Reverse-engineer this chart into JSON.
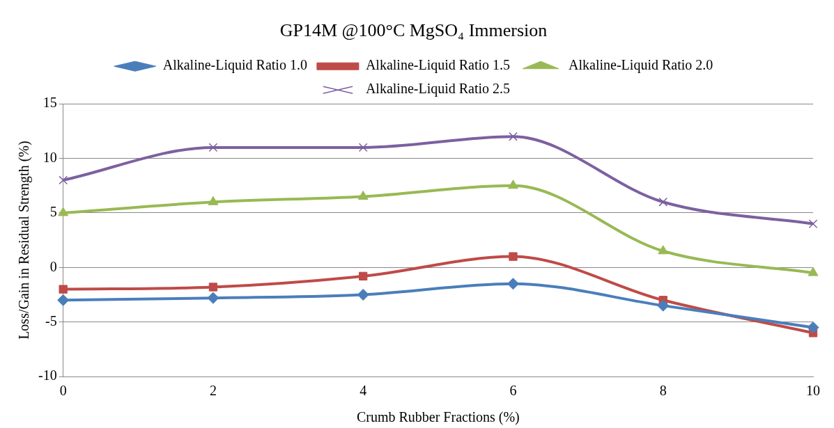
{
  "chart_data": {
    "type": "line",
    "title": "GP14M @100°C MgSO₄ Immersion",
    "xlabel": "Crumb Rubber Fractions (%)",
    "ylabel": "Loss/Gain in Residual Strength (%)",
    "categories": [
      "0",
      "2",
      "4",
      "6",
      "8",
      "10"
    ],
    "series": [
      {
        "name": "Alkaline-Liquid Ratio 1.0",
        "color": "#4a7ebb",
        "marker": "diamond",
        "values": [
          -3,
          -2.8,
          -2.5,
          -1.5,
          -3.5,
          -5.5
        ]
      },
      {
        "name": "Alkaline-Liquid Ratio 1.5",
        "color": "#be4b48",
        "marker": "square",
        "values": [
          -2,
          -1.8,
          -0.8,
          1,
          -3,
          -6
        ]
      },
      {
        "name": "Alkaline-Liquid Ratio 2.0",
        "color": "#98b954",
        "marker": "triangle",
        "values": [
          5,
          6,
          6.5,
          7.5,
          1.5,
          -0.5
        ]
      },
      {
        "name": "Alkaline-Liquid Ratio 2.5",
        "color": "#7d60a0",
        "marker": "cross",
        "values": [
          8,
          11,
          11,
          12,
          6,
          4
        ]
      }
    ],
    "ylim": [
      -10,
      15
    ],
    "yticks": [
      -10,
      -5,
      0,
      5,
      10,
      15
    ],
    "grid": "y",
    "legend": "top",
    "line_style": "solid"
  }
}
